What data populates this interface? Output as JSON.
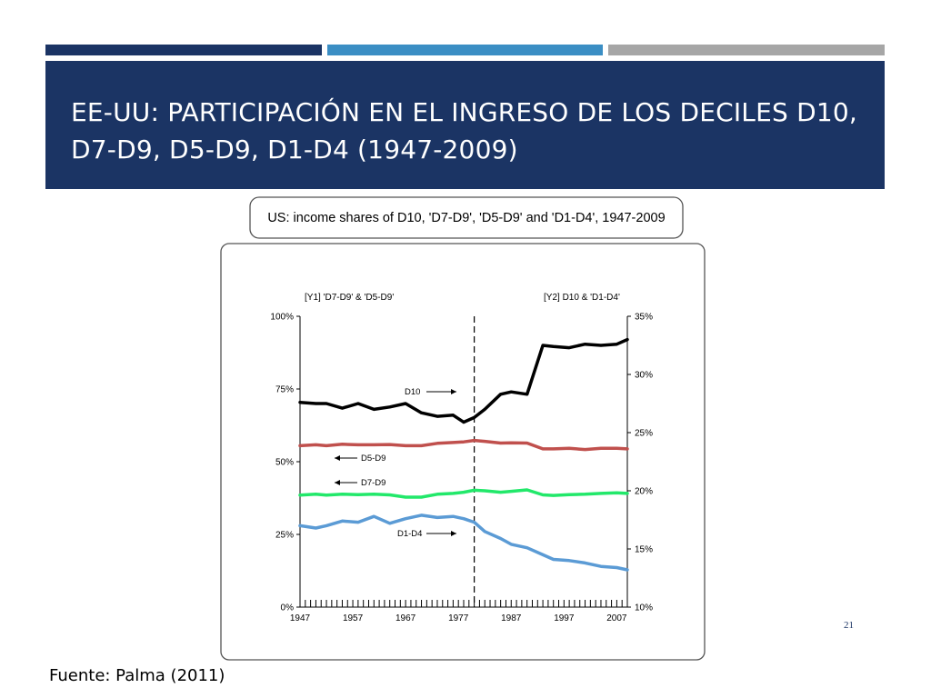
{
  "slide": {
    "title": "EE-UU: PARTICIPACIÓN EN EL INGRESO DE LOS DECILES D10, D7-D9, D5-D9, D1-D4 (1947-2009)",
    "page_number": "21",
    "source": "Fuente: Palma (2011)"
  },
  "colors": {
    "navy": "#1b3464",
    "blue": "#3b8ec4",
    "gray": "#a6a6a6",
    "d10": "#000000",
    "d5d9": "#c0504d",
    "d7d9": "#22e86a",
    "d1d4": "#5b9bd5"
  },
  "chart_data": {
    "type": "line",
    "title": "US: income shares of D10, 'D7-D9', 'D5-D9' and 'D1-D4', 1947-2009",
    "left_axis_label": "[Y1] 'D7-D9' & 'D5-D9'",
    "right_axis_label": "[Y2] D10 & 'D1-D4'",
    "left_ylim": [
      0,
      100
    ],
    "right_ylim": [
      10,
      35
    ],
    "xlim": [
      1947,
      2009
    ],
    "x_ticks": [
      "1947",
      "1957",
      "1967",
      "1977",
      "1987",
      "1997",
      "2007"
    ],
    "left_ticks": [
      "0%",
      "25%",
      "50%",
      "75%",
      "100%"
    ],
    "right_ticks": [
      "10%",
      "15%",
      "20%",
      "25%",
      "30%",
      "35%"
    ],
    "vertical_marker_year": 1980,
    "x": [
      1947,
      1950,
      1952,
      1955,
      1958,
      1961,
      1964,
      1967,
      1970,
      1973,
      1976,
      1978,
      1980,
      1982,
      1985,
      1987,
      1990,
      1993,
      1995,
      1998,
      2001,
      2004,
      2007,
      2009
    ],
    "series": [
      {
        "name": "D10",
        "axis": "right",
        "label": "D10",
        "values": [
          27.6,
          27.5,
          27.5,
          27.1,
          27.5,
          27.0,
          27.2,
          27.5,
          26.7,
          26.4,
          26.5,
          25.9,
          26.3,
          27.0,
          28.3,
          28.5,
          28.3,
          32.5,
          32.4,
          32.3,
          32.6,
          32.5,
          32.6,
          33.0
        ]
      },
      {
        "name": "D5-D9",
        "axis": "left",
        "label": "D5-D9",
        "values": [
          55.5,
          55.8,
          55.5,
          56.0,
          55.8,
          55.8,
          55.9,
          55.5,
          55.5,
          56.3,
          56.6,
          56.8,
          57.3,
          57.0,
          56.4,
          56.5,
          56.4,
          54.4,
          54.4,
          54.6,
          54.2,
          54.6,
          54.6,
          54.4
        ]
      },
      {
        "name": "D7-D9",
        "axis": "left",
        "label": "D7-D9",
        "values": [
          38.5,
          38.8,
          38.5,
          38.8,
          38.7,
          38.8,
          38.6,
          37.8,
          37.8,
          38.8,
          39.1,
          39.5,
          40.2,
          40.0,
          39.5,
          39.8,
          40.3,
          38.6,
          38.4,
          38.7,
          38.8,
          39.1,
          39.3,
          39.1
        ]
      },
      {
        "name": "D1-D4",
        "axis": "right",
        "label": "D1-D4",
        "values": [
          17.0,
          16.8,
          17.0,
          17.4,
          17.3,
          17.8,
          17.2,
          17.6,
          17.9,
          17.7,
          17.8,
          17.6,
          17.3,
          16.5,
          15.9,
          15.4,
          15.1,
          14.5,
          14.1,
          14.0,
          13.8,
          13.5,
          13.4,
          13.2
        ]
      }
    ]
  }
}
